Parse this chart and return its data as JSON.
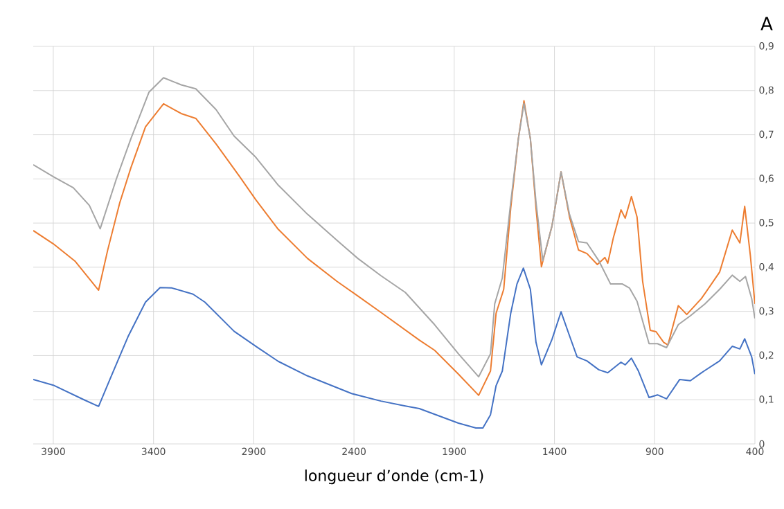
{
  "chart_data": {
    "type": "line",
    "title": "A",
    "xlabel": "longueur d’onde (cm-1)",
    "xlim": [
      4000,
      400
    ],
    "xticks": [
      3900,
      3400,
      2900,
      2400,
      1900,
      1400,
      900,
      400
    ],
    "ylim": [
      0,
      0.9
    ],
    "yticks": [
      0,
      {
        "value": 0.1,
        "label": "0,1"
      },
      {
        "value": 0.2,
        "label": "0,2"
      },
      {
        "value": 0.3,
        "label": "0,3"
      },
      {
        "value": 0.4,
        "label": "0,4"
      },
      {
        "value": 0.5,
        "label": "0,5"
      },
      {
        "value": 0.6,
        "label": "0,6"
      },
      {
        "value": 0.7,
        "label": "0,7"
      },
      {
        "value": 0.8,
        "label": "0,8"
      },
      {
        "value": 0.9,
        "label": "0,9"
      }
    ],
    "grid": true,
    "series": [
      {
        "color": "#4472c4",
        "x": [
          4000,
          3900,
          3747,
          3674,
          3614,
          3527,
          3440,
          3367,
          3308,
          3203,
          3144,
          2998,
          2883,
          2778,
          2632,
          2412,
          2266,
          2144,
          2074,
          1879,
          1792,
          1757,
          1719,
          1691,
          1660,
          1618,
          1587,
          1555,
          1520,
          1492,
          1465,
          1412,
          1367,
          1325,
          1287,
          1238,
          1179,
          1134,
          1068,
          1047,
          1016,
          981,
          928,
          886,
          841,
          775,
          722,
          667,
          576,
          513,
          475,
          451,
          416,
          400
        ],
        "values": [
          0.146,
          0.133,
          0.1,
          0.085,
          0.15,
          0.243,
          0.321,
          0.354,
          0.353,
          0.339,
          0.321,
          0.255,
          0.219,
          0.187,
          0.154,
          0.114,
          0.097,
          0.086,
          0.08,
          0.047,
          0.036,
          0.036,
          0.066,
          0.132,
          0.165,
          0.296,
          0.362,
          0.398,
          0.35,
          0.23,
          0.179,
          0.237,
          0.299,
          0.245,
          0.197,
          0.188,
          0.168,
          0.161,
          0.185,
          0.179,
          0.194,
          0.165,
          0.105,
          0.111,
          0.102,
          0.146,
          0.143,
          0.161,
          0.188,
          0.221,
          0.215,
          0.238,
          0.197,
          0.158
        ]
      },
      {
        "color": "#ed7d31",
        "x": [
          4000,
          3900,
          3792,
          3674,
          3628,
          3569,
          3513,
          3440,
          3350,
          3262,
          3189,
          3088,
          2970,
          2890,
          2778,
          2632,
          2485,
          2381,
          2266,
          2074,
          1998,
          1879,
          1778,
          1719,
          1691,
          1653,
          1618,
          1580,
          1552,
          1520,
          1492,
          1465,
          1412,
          1367,
          1325,
          1280,
          1238,
          1186,
          1148,
          1134,
          1106,
          1068,
          1047,
          1016,
          988,
          960,
          922,
          893,
          855,
          834,
          782,
          740,
          667,
          576,
          513,
          475,
          451,
          423,
          400
        ],
        "values": [
          0.483,
          0.453,
          0.414,
          0.348,
          0.44,
          0.545,
          0.625,
          0.718,
          0.77,
          0.748,
          0.737,
          0.679,
          0.605,
          0.553,
          0.486,
          0.42,
          0.368,
          0.335,
          0.298,
          0.235,
          0.212,
          0.158,
          0.11,
          0.165,
          0.296,
          0.35,
          0.534,
          0.691,
          0.777,
          0.691,
          0.534,
          0.401,
          0.494,
          0.616,
          0.514,
          0.439,
          0.431,
          0.406,
          0.422,
          0.409,
          0.467,
          0.53,
          0.511,
          0.56,
          0.514,
          0.368,
          0.257,
          0.254,
          0.23,
          0.224,
          0.313,
          0.293,
          0.329,
          0.389,
          0.484,
          0.455,
          0.538,
          0.428,
          0.317
        ]
      },
      {
        "color": "#a5a5a5",
        "x": [
          4000,
          3900,
          3800,
          3720,
          3666,
          3586,
          3513,
          3423,
          3350,
          3262,
          3189,
          3088,
          2998,
          2890,
          2778,
          2632,
          2485,
          2381,
          2266,
          2144,
          1998,
          1879,
          1778,
          1719,
          1698,
          1660,
          1618,
          1580,
          1552,
          1520,
          1492,
          1458,
          1412,
          1367,
          1325,
          1280,
          1238,
          1179,
          1120,
          1061,
          1026,
          988,
          928,
          886,
          841,
          782,
          722,
          649,
          576,
          513,
          475,
          447,
          416,
          400
        ],
        "values": [
          0.632,
          0.605,
          0.58,
          0.54,
          0.487,
          0.599,
          0.691,
          0.796,
          0.829,
          0.813,
          0.804,
          0.757,
          0.697,
          0.649,
          0.586,
          0.52,
          0.461,
          0.42,
          0.381,
          0.343,
          0.27,
          0.204,
          0.152,
          0.204,
          0.317,
          0.376,
          0.547,
          0.691,
          0.771,
          0.691,
          0.547,
          0.415,
          0.494,
          0.616,
          0.52,
          0.458,
          0.455,
          0.415,
          0.362,
          0.362,
          0.353,
          0.323,
          0.227,
          0.227,
          0.218,
          0.27,
          0.29,
          0.317,
          0.35,
          0.382,
          0.368,
          0.379,
          0.329,
          0.284
        ]
      }
    ]
  }
}
